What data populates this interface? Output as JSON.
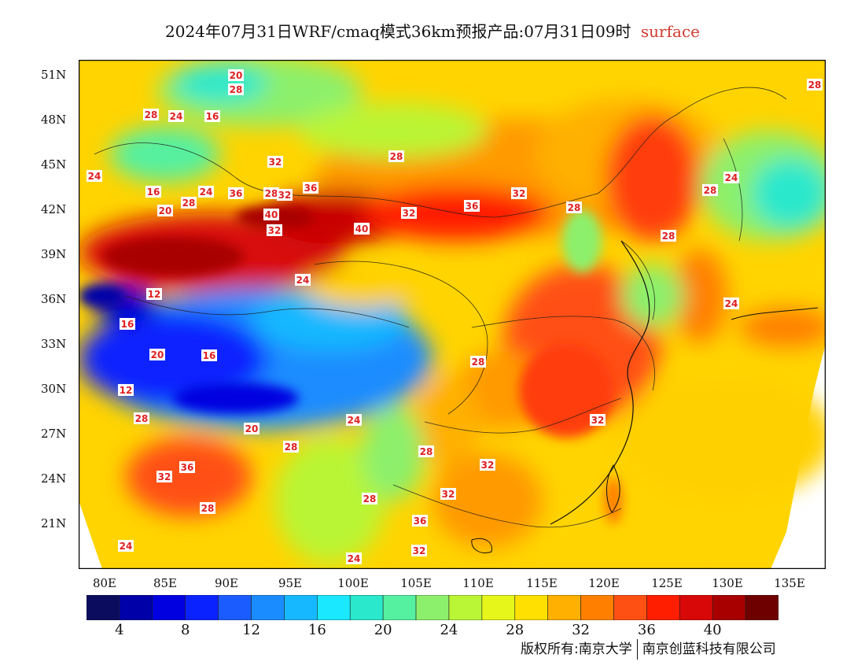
{
  "title": {
    "main": "2024年07月31日WRF/cmaq模式36km预报产品:07月31日09时",
    "field": "surface"
  },
  "lat_labels": [
    "51N",
    "48N",
    "45N",
    "42N",
    "39N",
    "36N",
    "33N",
    "30N",
    "27N",
    "24N",
    "21N"
  ],
  "lon_labels": [
    "80E",
    "85E",
    "90E",
    "95E",
    "100E",
    "105E",
    "110E",
    "115E",
    "120E",
    "125E",
    "130E",
    "135E"
  ],
  "colorbar": {
    "tick_labels": [
      "4",
      "8",
      "12",
      "16",
      "20",
      "24",
      "28",
      "32",
      "36",
      "40"
    ],
    "colors": [
      "#0b0c5e",
      "#0000a8",
      "#0000e0",
      "#0a22ff",
      "#1a5cff",
      "#1a8cff",
      "#16b8ff",
      "#1ae8ff",
      "#2ae8cc",
      "#55f0a0",
      "#8cf06c",
      "#baf536",
      "#e6f51a",
      "#ffe000",
      "#ffb000",
      "#ff8000",
      "#ff5014",
      "#ff1e00",
      "#d80808",
      "#a80000",
      "#6e0000"
    ]
  },
  "contour_labels": [
    {
      "text": "24"
    },
    {
      "text": "20"
    },
    {
      "text": "28"
    },
    {
      "text": "28"
    },
    {
      "text": "16"
    },
    {
      "text": "24"
    },
    {
      "text": "32"
    },
    {
      "text": "36"
    },
    {
      "text": "28"
    },
    {
      "text": "24"
    },
    {
      "text": "20"
    },
    {
      "text": "16"
    },
    {
      "text": "36"
    },
    {
      "text": "40"
    },
    {
      "text": "32"
    },
    {
      "text": "40"
    },
    {
      "text": "28"
    },
    {
      "text": "36"
    },
    {
      "text": "32"
    },
    {
      "text": "28"
    },
    {
      "text": "32"
    },
    {
      "text": "24"
    },
    {
      "text": "12"
    },
    {
      "text": "16"
    },
    {
      "text": "20"
    },
    {
      "text": "16"
    },
    {
      "text": "12"
    },
    {
      "text": "28"
    },
    {
      "text": "20"
    },
    {
      "text": "24"
    },
    {
      "text": "28"
    },
    {
      "text": "36"
    },
    {
      "text": "32"
    },
    {
      "text": "28"
    },
    {
      "text": "24"
    },
    {
      "text": "24"
    },
    {
      "text": "32"
    },
    {
      "text": "28"
    },
    {
      "text": "32"
    },
    {
      "text": "28"
    },
    {
      "text": "32"
    },
    {
      "text": "36"
    },
    {
      "text": "28"
    },
    {
      "text": "28"
    },
    {
      "text": "24"
    },
    {
      "text": "32"
    },
    {
      "text": "32"
    },
    {
      "text": "28"
    },
    {
      "text": "28"
    },
    {
      "text": "24"
    },
    {
      "text": "28"
    }
  ],
  "copyright": {
    "left": "版权所有:南京大学",
    "right": "南京创蓝科技有限公司"
  }
}
